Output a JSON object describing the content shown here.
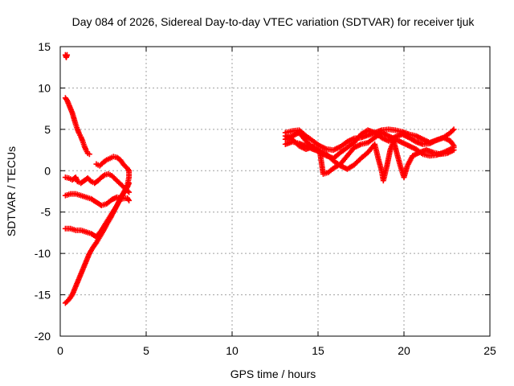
{
  "chart_data": {
    "type": "scatter",
    "title": "Day 084 of 2026, Sidereal Day-to-day VTEC variation (SDTVAR) for receiver tjuk",
    "xlabel": "GPS time / hours",
    "ylabel": "SDTVAR / TECUs",
    "xlim": [
      0,
      25
    ],
    "ylim": [
      -20,
      15
    ],
    "xticks": [
      0,
      5,
      10,
      15,
      20,
      25
    ],
    "yticks": [
      -20,
      -15,
      -10,
      -5,
      0,
      5,
      10,
      15
    ],
    "grid": true,
    "marker": "+",
    "color": "#ff0000",
    "series": [
      {
        "points": [
          [
            0.3,
            14.0
          ],
          [
            0.35,
            13.7
          ],
          [
            0.4,
            14.0
          ]
        ]
      },
      {
        "points": [
          [
            0.3,
            8.8
          ],
          [
            0.4,
            8.5
          ],
          [
            0.5,
            8.0
          ],
          [
            0.6,
            7.5
          ],
          [
            0.7,
            7.0
          ],
          [
            0.8,
            6.3
          ],
          [
            0.9,
            5.6
          ],
          [
            1.0,
            5.0
          ],
          [
            1.1,
            4.5
          ],
          [
            1.2,
            4.1
          ],
          [
            1.3,
            3.6
          ],
          [
            1.4,
            3.0
          ],
          [
            1.5,
            2.5
          ],
          [
            1.6,
            2.1
          ],
          [
            1.7,
            2.0
          ]
        ]
      },
      {
        "points": [
          [
            2.1,
            0.8
          ],
          [
            2.3,
            0.6
          ],
          [
            2.5,
            1.0
          ],
          [
            2.7,
            1.3
          ],
          [
            2.9,
            1.5
          ],
          [
            3.1,
            1.7
          ],
          [
            3.3,
            1.6
          ],
          [
            3.5,
            1.3
          ],
          [
            3.7,
            0.7
          ],
          [
            3.9,
            0.3
          ],
          [
            4.0,
            0.0
          ]
        ]
      },
      {
        "points": [
          [
            0.3,
            -0.8
          ],
          [
            0.5,
            -0.9
          ],
          [
            0.7,
            -1.1
          ],
          [
            0.9,
            -0.8
          ],
          [
            1.0,
            -1.3
          ],
          [
            1.2,
            -1.5
          ],
          [
            1.4,
            -1.2
          ],
          [
            1.6,
            -0.9
          ],
          [
            1.8,
            -1.3
          ],
          [
            2.0,
            -1.5
          ],
          [
            2.2,
            -1.2
          ],
          [
            2.4,
            -0.8
          ],
          [
            2.6,
            -0.5
          ],
          [
            2.8,
            -0.4
          ],
          [
            3.0,
            -0.6
          ],
          [
            3.2,
            -1.0
          ],
          [
            3.4,
            -1.4
          ],
          [
            3.6,
            -1.8
          ],
          [
            3.8,
            -2.2
          ],
          [
            4.0,
            -2.6
          ]
        ]
      },
      {
        "points": [
          [
            0.3,
            -3.0
          ],
          [
            0.6,
            -2.8
          ],
          [
            0.9,
            -2.8
          ],
          [
            1.2,
            -3.0
          ],
          [
            1.5,
            -3.2
          ],
          [
            1.8,
            -3.4
          ],
          [
            2.1,
            -3.8
          ],
          [
            2.4,
            -4.2
          ],
          [
            2.7,
            -4.0
          ],
          [
            3.0,
            -3.5
          ],
          [
            3.3,
            -3.2
          ],
          [
            3.6,
            -3.4
          ],
          [
            3.9,
            -3.3
          ],
          [
            4.0,
            -3.6
          ]
        ]
      },
      {
        "points": [
          [
            0.3,
            -7.0
          ],
          [
            0.6,
            -7.0
          ],
          [
            0.9,
            -7.2
          ],
          [
            1.2,
            -7.2
          ],
          [
            1.5,
            -7.4
          ],
          [
            1.8,
            -7.6
          ],
          [
            2.1,
            -8.0
          ],
          [
            2.4,
            -7.2
          ],
          [
            2.7,
            -6.2
          ],
          [
            3.0,
            -5.2
          ],
          [
            3.3,
            -4.2
          ],
          [
            3.6,
            -3.0
          ],
          [
            3.9,
            -2.0
          ],
          [
            4.0,
            -1.5
          ]
        ]
      },
      {
        "points": [
          [
            0.3,
            -16.0
          ],
          [
            0.5,
            -15.6
          ],
          [
            0.7,
            -15.0
          ],
          [
            0.9,
            -14.0
          ],
          [
            1.1,
            -13.0
          ],
          [
            1.3,
            -12.0
          ],
          [
            1.5,
            -11.0
          ],
          [
            1.7,
            -10.0
          ],
          [
            1.9,
            -9.3
          ],
          [
            2.1,
            -8.7
          ],
          [
            2.3,
            -8.0
          ],
          [
            2.5,
            -7.3
          ],
          [
            2.7,
            -6.5
          ],
          [
            2.9,
            -5.8
          ],
          [
            3.1,
            -5.0
          ],
          [
            3.3,
            -4.2
          ],
          [
            3.5,
            -3.4
          ],
          [
            3.7,
            -2.6
          ],
          [
            3.9,
            -1.8
          ],
          [
            4.0,
            -0.8
          ],
          [
            4.0,
            0.0
          ]
        ]
      },
      {
        "points": [
          [
            13.1,
            4.6
          ],
          [
            13.5,
            4.8
          ],
          [
            13.9,
            4.9
          ],
          [
            14.3,
            4.2
          ],
          [
            14.7,
            3.6
          ],
          [
            15.1,
            3.0
          ],
          [
            15.5,
            2.6
          ],
          [
            15.9,
            2.5
          ],
          [
            16.3,
            2.9
          ],
          [
            16.7,
            3.5
          ],
          [
            17.1,
            3.9
          ],
          [
            17.5,
            4.0
          ],
          [
            17.9,
            4.3
          ],
          [
            18.3,
            4.6
          ],
          [
            18.7,
            4.9
          ],
          [
            19.1,
            5.0
          ],
          [
            19.5,
            4.9
          ],
          [
            19.9,
            4.7
          ],
          [
            20.3,
            4.4
          ],
          [
            20.7,
            4.2
          ],
          [
            21.1,
            3.8
          ],
          [
            21.5,
            3.4
          ],
          [
            21.9,
            3.7
          ],
          [
            22.3,
            4.0
          ],
          [
            22.7,
            3.6
          ],
          [
            22.9,
            3.0
          ]
        ]
      },
      {
        "points": [
          [
            13.1,
            3.8
          ],
          [
            13.5,
            4.2
          ],
          [
            13.9,
            4.6
          ],
          [
            14.3,
            3.6
          ],
          [
            14.7,
            2.8
          ],
          [
            15.1,
            2.2
          ],
          [
            15.5,
            1.8
          ],
          [
            15.9,
            1.5
          ],
          [
            16.3,
            2.2
          ],
          [
            16.7,
            2.8
          ],
          [
            17.1,
            3.4
          ],
          [
            17.5,
            4.4
          ],
          [
            17.9,
            4.9
          ],
          [
            18.3,
            4.6
          ],
          [
            18.7,
            4.0
          ],
          [
            19.1,
            3.6
          ],
          [
            19.5,
            4.1
          ],
          [
            19.9,
            4.4
          ],
          [
            20.3,
            4.0
          ],
          [
            20.7,
            3.5
          ],
          [
            21.1,
            3.2
          ],
          [
            21.5,
            3.3
          ],
          [
            21.9,
            3.7
          ],
          [
            22.3,
            4.0
          ],
          [
            22.7,
            4.6
          ],
          [
            22.9,
            5.0
          ]
        ]
      },
      {
        "points": [
          [
            13.1,
            3.2
          ],
          [
            13.5,
            3.5
          ],
          [
            13.9,
            3.3
          ],
          [
            14.3,
            3.0
          ],
          [
            14.7,
            2.6
          ],
          [
            15.1,
            2.3
          ],
          [
            15.5,
            2.0
          ],
          [
            15.9,
            1.2
          ],
          [
            16.3,
            0.6
          ],
          [
            16.7,
            0.2
          ],
          [
            17.1,
            0.7
          ],
          [
            17.5,
            1.5
          ],
          [
            17.9,
            2.2
          ],
          [
            18.3,
            3.2
          ],
          [
            18.5,
            1.5
          ],
          [
            18.7,
            0.0
          ],
          [
            18.8,
            -1.2
          ],
          [
            19.0,
            0.5
          ],
          [
            19.2,
            2.5
          ],
          [
            19.4,
            3.6
          ],
          [
            19.6,
            2.0
          ],
          [
            19.8,
            0.5
          ],
          [
            20.0,
            -0.8
          ],
          [
            20.2,
            0.6
          ],
          [
            20.5,
            1.8
          ],
          [
            20.9,
            2.2
          ],
          [
            21.3,
            2.5
          ],
          [
            21.7,
            2.2
          ],
          [
            22.1,
            2.0
          ],
          [
            22.5,
            2.1
          ],
          [
            22.9,
            2.5
          ]
        ]
      },
      {
        "points": [
          [
            13.1,
            4.2
          ],
          [
            13.5,
            3.8
          ],
          [
            13.9,
            3.0
          ],
          [
            14.3,
            2.6
          ],
          [
            14.7,
            2.9
          ],
          [
            15.1,
            2.4
          ],
          [
            15.3,
            -0.4
          ],
          [
            15.6,
            -0.2
          ],
          [
            15.9,
            0.3
          ],
          [
            16.3,
            0.8
          ],
          [
            16.7,
            1.8
          ],
          [
            17.1,
            2.8
          ],
          [
            17.5,
            3.2
          ],
          [
            17.9,
            3.4
          ],
          [
            18.3,
            4.0
          ],
          [
            18.7,
            4.6
          ],
          [
            19.1,
            4.2
          ],
          [
            19.5,
            3.8
          ],
          [
            19.9,
            3.4
          ],
          [
            20.3,
            3.0
          ],
          [
            20.7,
            2.6
          ],
          [
            21.1,
            2.0
          ],
          [
            21.5,
            1.8
          ],
          [
            21.9,
            1.9
          ],
          [
            22.3,
            2.2
          ],
          [
            22.7,
            2.6
          ],
          [
            22.9,
            2.8
          ]
        ]
      }
    ]
  }
}
